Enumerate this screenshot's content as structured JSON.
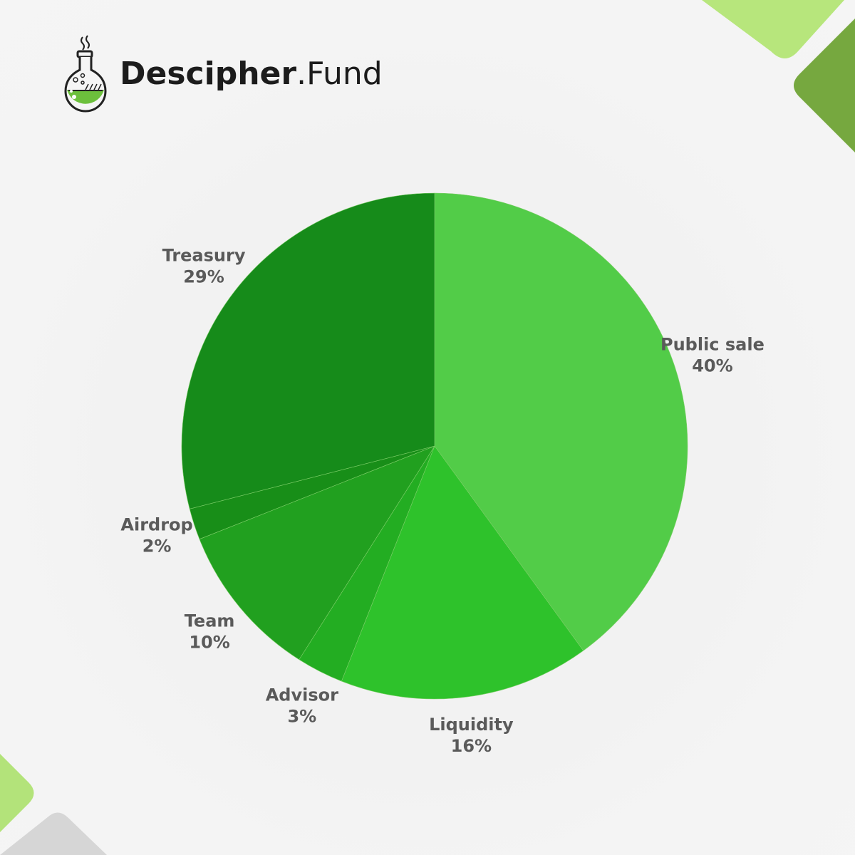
{
  "brand": {
    "name_part1": "Descipher",
    "name_part2": ".Fund",
    "icon": "flask-icon"
  },
  "colors": {
    "background": "#f3f3f3",
    "label_text": "#5a5a5a",
    "accent_light": "#b5e57a",
    "accent_dark": "#76a83d",
    "corner_grey": "#d6d6d6"
  },
  "chart_data": {
    "type": "pie",
    "start_angle_deg": 0,
    "direction": "clockwise",
    "series": [
      {
        "name": "",
        "slices": [
          {
            "label": "Public sale",
            "value": 40,
            "display": "40%",
            "color": "#52cc48"
          },
          {
            "label": "Liquidity",
            "value": 16,
            "display": "16%",
            "color": "#2ec22b"
          },
          {
            "label": "Advisor",
            "value": 3,
            "display": "3%",
            "color": "#23ad22"
          },
          {
            "label": "Team",
            "value": 10,
            "display": "10%",
            "color": "#21a01f"
          },
          {
            "label": "Airdrop",
            "value": 2,
            "display": "2%",
            "color": "#188e18"
          },
          {
            "label": "Treasury",
            "value": 29,
            "display": "29%",
            "color": "#168b1a"
          }
        ]
      }
    ],
    "labels_outside": true,
    "legend": "none"
  }
}
